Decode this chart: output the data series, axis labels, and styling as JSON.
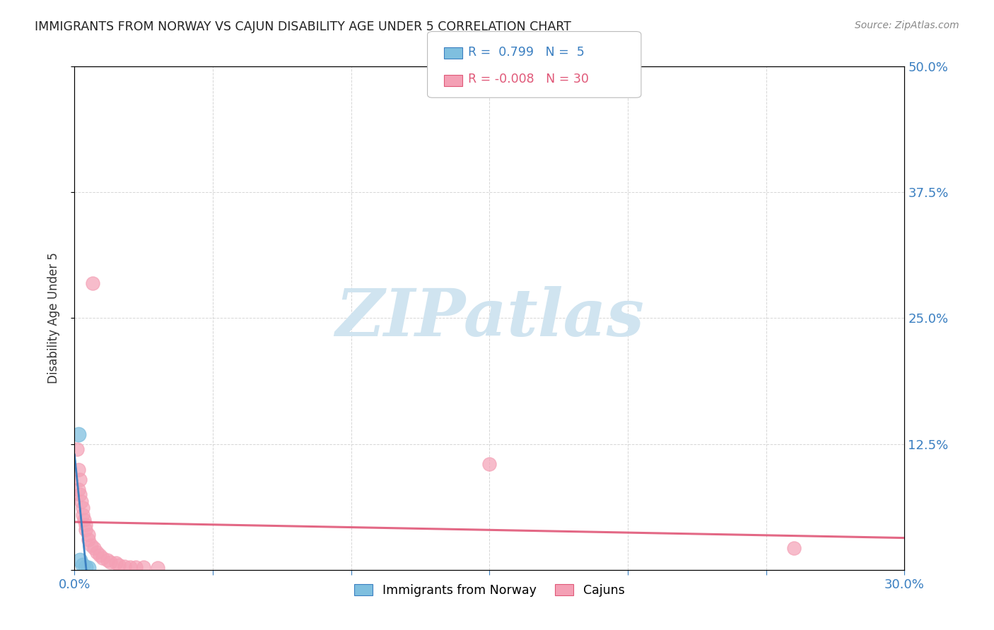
{
  "title": "IMMIGRANTS FROM NORWAY VS CAJUN DISABILITY AGE UNDER 5 CORRELATION CHART",
  "source": "Source: ZipAtlas.com",
  "ylabel": "Disability Age Under 5",
  "xlim": [
    0.0,
    0.3
  ],
  "ylim": [
    0.0,
    0.5
  ],
  "xticks": [
    0.0,
    0.05,
    0.1,
    0.15,
    0.2,
    0.25,
    0.3
  ],
  "yticks": [
    0.0,
    0.125,
    0.25,
    0.375,
    0.5
  ],
  "xticklabels": [
    "0.0%",
    "",
    "",
    "",
    "",
    "",
    "30.0%"
  ],
  "yticklabels_right": [
    "",
    "12.5%",
    "25.0%",
    "37.5%",
    "50.0%"
  ],
  "norway_points": [
    [
      0.0015,
      0.135
    ],
    [
      0.002,
      0.01
    ],
    [
      0.003,
      0.005
    ],
    [
      0.004,
      0.003
    ],
    [
      0.005,
      0.002
    ]
  ],
  "cajun_points": [
    [
      0.0065,
      0.285
    ],
    [
      0.001,
      0.12
    ],
    [
      0.0015,
      0.1
    ],
    [
      0.002,
      0.09
    ],
    [
      0.0015,
      0.08
    ],
    [
      0.002,
      0.075
    ],
    [
      0.0025,
      0.068
    ],
    [
      0.003,
      0.062
    ],
    [
      0.003,
      0.055
    ],
    [
      0.0035,
      0.05
    ],
    [
      0.004,
      0.045
    ],
    [
      0.004,
      0.04
    ],
    [
      0.005,
      0.035
    ],
    [
      0.005,
      0.03
    ],
    [
      0.006,
      0.025
    ],
    [
      0.007,
      0.022
    ],
    [
      0.008,
      0.018
    ],
    [
      0.009,
      0.015
    ],
    [
      0.01,
      0.012
    ],
    [
      0.012,
      0.01
    ],
    [
      0.013,
      0.008
    ],
    [
      0.015,
      0.007
    ],
    [
      0.016,
      0.005
    ],
    [
      0.018,
      0.004
    ],
    [
      0.02,
      0.003
    ],
    [
      0.022,
      0.003
    ],
    [
      0.15,
      0.105
    ],
    [
      0.26,
      0.022
    ],
    [
      0.025,
      0.003
    ],
    [
      0.03,
      0.002
    ]
  ],
  "norway_R": 0.799,
  "norway_N": 5,
  "cajun_R": -0.008,
  "cajun_N": 30,
  "norway_color": "#7fbfdf",
  "cajun_color": "#f4a0b5",
  "norway_line_color": "#3a7fc1",
  "cajun_line_color": "#e05878",
  "background_color": "#ffffff",
  "grid_color": "#cccccc",
  "title_color": "#222222",
  "source_color": "#888888",
  "tick_color": "#3a7fc1",
  "watermark_text": "ZIPatlas",
  "watermark_color": "#d0e4f0",
  "legend_r_value_norway": "0.799",
  "legend_n_value_norway": "5",
  "legend_r_value_cajun": "-0.008",
  "legend_n_value_cajun": "30"
}
